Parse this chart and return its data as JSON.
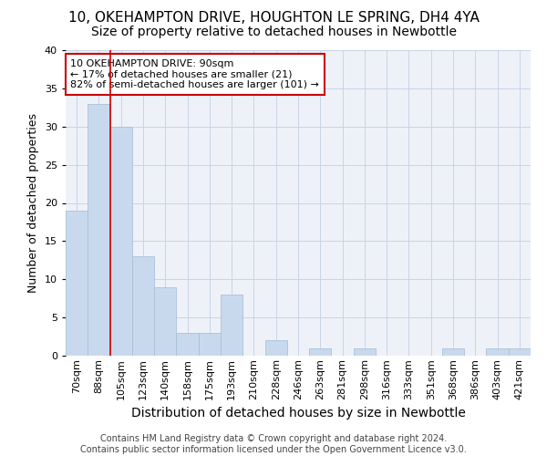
{
  "title1": "10, OKEHAMPTON DRIVE, HOUGHTON LE SPRING, DH4 4YA",
  "title2": "Size of property relative to detached houses in Newbottle",
  "xlabel": "Distribution of detached houses by size in Newbottle",
  "ylabel": "Number of detached properties",
  "footer1": "Contains HM Land Registry data © Crown copyright and database right 2024.",
  "footer2": "Contains public sector information licensed under the Open Government Licence v3.0.",
  "bin_labels": [
    "70sqm",
    "88sqm",
    "105sqm",
    "123sqm",
    "140sqm",
    "158sqm",
    "175sqm",
    "193sqm",
    "210sqm",
    "228sqm",
    "246sqm",
    "263sqm",
    "281sqm",
    "298sqm",
    "316sqm",
    "333sqm",
    "351sqm",
    "368sqm",
    "386sqm",
    "403sqm",
    "421sqm"
  ],
  "bar_values": [
    19,
    33,
    30,
    13,
    9,
    3,
    3,
    8,
    0,
    2,
    0,
    1,
    0,
    1,
    0,
    0,
    0,
    1,
    0,
    1,
    1
  ],
  "bar_color": "#c9d9ed",
  "bar_edge_color": "#a8c0d8",
  "highlight_line_color": "#cc0000",
  "highlight_line_index": 1,
  "annotation_text_line1": "10 OKEHAMPTON DRIVE: 90sqm",
  "annotation_text_line2": "← 17% of detached houses are smaller (21)",
  "annotation_text_line3": "82% of semi-detached houses are larger (101) →",
  "annotation_box_edge_color": "#cc0000",
  "ylim": [
    0,
    40
  ],
  "yticks": [
    0,
    5,
    10,
    15,
    20,
    25,
    30,
    35,
    40
  ],
  "grid_color": "#c8d4e8",
  "bg_color": "#eef2f8",
  "title1_fontsize": 11,
  "title2_fontsize": 10,
  "xlabel_fontsize": 10,
  "ylabel_fontsize": 9,
  "tick_fontsize": 8,
  "annotation_fontsize": 8,
  "footer_fontsize": 7
}
